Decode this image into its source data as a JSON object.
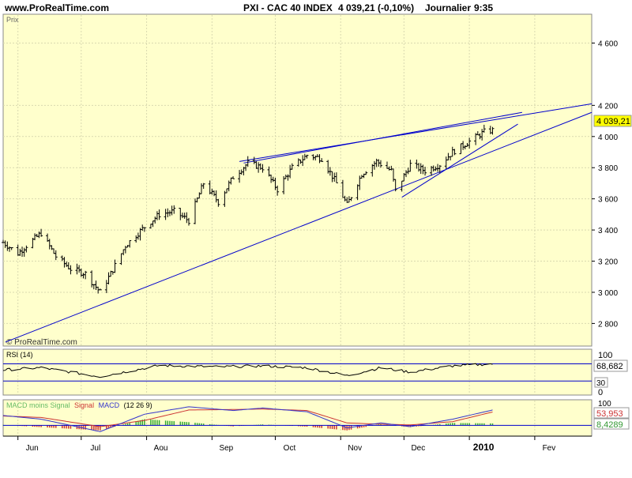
{
  "header": {
    "site": "www.ProRealTime.com",
    "title": "PXI - CAC 40 INDEX",
    "quote": "4 039,21 (-0,10%)",
    "period": "Journalier",
    "time": "9:35"
  },
  "price_panel": {
    "label": "Prix",
    "watermark": "© ProRealTime.com",
    "current_label": "4 039,21",
    "y_ticks": [
      "2 800",
      "3 000",
      "3 200",
      "3 400",
      "3 600",
      "3 800",
      "4 000",
      "4 200",
      "4 600"
    ]
  },
  "rsi_panel": {
    "label": "RSI (14)",
    "ticks": [
      "100",
      "30",
      "0"
    ],
    "current_label": "68,682"
  },
  "macd_panel": {
    "label_diff": "MACD moins Signal",
    "label_signal": "Signal",
    "label_macd": "MACD",
    "label_params": "(12 26 9)",
    "top_tick": "100",
    "value_signal": "53,953",
    "value_diff": "8,4289"
  },
  "x_axis": {
    "labels": [
      "Jun",
      "Jul",
      "Aou",
      "Sep",
      "Oct",
      "Nov",
      "Dec",
      "2010",
      "Fev"
    ]
  },
  "colors": {
    "panel_bg": "#ffffcc",
    "grid": "#d9d9b0",
    "trendline": "#0000cc",
    "candle": "#000000",
    "macd_fill_pos": "#99ee99",
    "macd_fill_neg": "#ee9999",
    "highlight": "#ffff00",
    "signal_line": "#cc3333",
    "macd_line": "#3333cc"
  },
  "chart_data": {
    "type": "ohlc",
    "series_name": "PXI - CAC 40 INDEX",
    "period": "daily",
    "x_range": [
      "2009-05-25",
      "2010-02-28"
    ],
    "ylim": [
      2660,
      4780
    ],
    "last": 4039.21,
    "anchors": [
      {
        "date": "2009-05-25",
        "close": 3320
      },
      {
        "date": "2009-06-01",
        "close": 3250
      },
      {
        "date": "2009-06-05",
        "close": 3300
      },
      {
        "date": "2009-06-12",
        "close": 3380
      },
      {
        "date": "2009-06-19",
        "close": 3230
      },
      {
        "date": "2009-06-26",
        "close": 3150
      },
      {
        "date": "2009-07-03",
        "close": 3120
      },
      {
        "date": "2009-07-10",
        "close": 3000
      },
      {
        "date": "2009-07-15",
        "close": 3120
      },
      {
        "date": "2009-07-22",
        "close": 3300
      },
      {
        "date": "2009-07-31",
        "close": 3420
      },
      {
        "date": "2009-08-07",
        "close": 3500
      },
      {
        "date": "2009-08-14",
        "close": 3520
      },
      {
        "date": "2009-08-21",
        "close": 3460
      },
      {
        "date": "2009-08-28",
        "close": 3700
      },
      {
        "date": "2009-09-04",
        "close": 3580
      },
      {
        "date": "2009-09-11",
        "close": 3740
      },
      {
        "date": "2009-09-18",
        "close": 3830
      },
      {
        "date": "2009-09-25",
        "close": 3800
      },
      {
        "date": "2009-10-02",
        "close": 3660
      },
      {
        "date": "2009-10-09",
        "close": 3800
      },
      {
        "date": "2009-10-16",
        "close": 3880
      },
      {
        "date": "2009-10-23",
        "close": 3860
      },
      {
        "date": "2009-10-30",
        "close": 3700
      },
      {
        "date": "2009-11-04",
        "close": 3560
      },
      {
        "date": "2009-11-11",
        "close": 3760
      },
      {
        "date": "2009-11-18",
        "close": 3840
      },
      {
        "date": "2009-11-25",
        "close": 3780
      },
      {
        "date": "2009-11-27",
        "close": 3650
      },
      {
        "date": "2009-12-04",
        "close": 3820
      },
      {
        "date": "2009-12-11",
        "close": 3780
      },
      {
        "date": "2009-12-18",
        "close": 3820
      },
      {
        "date": "2009-12-24",
        "close": 3900
      },
      {
        "date": "2009-12-31",
        "close": 3960
      },
      {
        "date": "2010-01-08",
        "close": 4030
      },
      {
        "date": "2010-01-12",
        "close": 4039.21
      }
    ],
    "trendlines": [
      {
        "name": "long-term support",
        "from": {
          "date": "2009-05-26",
          "price": 2680
        },
        "to": {
          "date": "2010-02-28",
          "price": 4155
        }
      },
      {
        "name": "resistance",
        "from": {
          "date": "2009-09-14",
          "price": 3840
        },
        "to": {
          "date": "2010-02-28",
          "price": 4210
        }
      },
      {
        "name": "resistance (short)",
        "from": {
          "date": "2009-09-16",
          "price": 3830
        },
        "to": {
          "date": "2010-01-26",
          "price": 4155
        }
      },
      {
        "name": "short-term support",
        "from": {
          "date": "2009-11-30",
          "price": 3610
        },
        "to": {
          "date": "2010-01-24",
          "price": 4080
        }
      }
    ],
    "rsi": {
      "period": 14,
      "ylim": [
        0,
        100
      ],
      "level": 30,
      "last": 68.682,
      "anchors": [
        {
          "date": "2009-05-25",
          "value": 55
        },
        {
          "date": "2009-06-12",
          "value": 60
        },
        {
          "date": "2009-07-10",
          "value": 40
        },
        {
          "date": "2009-08-07",
          "value": 65
        },
        {
          "date": "2009-09-04",
          "value": 62
        },
        {
          "date": "2009-09-25",
          "value": 64
        },
        {
          "date": "2009-10-16",
          "value": 60
        },
        {
          "date": "2009-11-04",
          "value": 42
        },
        {
          "date": "2009-11-20",
          "value": 60
        },
        {
          "date": "2009-12-04",
          "value": 50
        },
        {
          "date": "2009-12-24",
          "value": 64
        },
        {
          "date": "2010-01-12",
          "value": 68.682
        }
      ]
    },
    "macd": {
      "params": [
        12,
        26,
        9
      ],
      "ylim": [
        -40,
        100
      ],
      "signal_last": 53.953,
      "diff_last": 8.4289,
      "macd_anchors": [
        {
          "date": "2009-05-25",
          "value": 40
        },
        {
          "date": "2009-06-12",
          "value": 25
        },
        {
          "date": "2009-07-10",
          "value": -25
        },
        {
          "date": "2009-07-31",
          "value": 45
        },
        {
          "date": "2009-08-21",
          "value": 75
        },
        {
          "date": "2009-09-11",
          "value": 60
        },
        {
          "date": "2009-09-25",
          "value": 70
        },
        {
          "date": "2009-10-16",
          "value": 55
        },
        {
          "date": "2009-11-04",
          "value": -10
        },
        {
          "date": "2009-11-20",
          "value": 10
        },
        {
          "date": "2009-12-04",
          "value": -5
        },
        {
          "date": "2009-12-24",
          "value": 25
        },
        {
          "date": "2010-01-12",
          "value": 62
        }
      ],
      "signal_anchors": [
        {
          "date": "2009-05-25",
          "value": 38
        },
        {
          "date": "2009-06-12",
          "value": 32
        },
        {
          "date": "2009-07-10",
          "value": -5
        },
        {
          "date": "2009-07-31",
          "value": 20
        },
        {
          "date": "2009-08-21",
          "value": 62
        },
        {
          "date": "2009-09-11",
          "value": 64
        },
        {
          "date": "2009-09-25",
          "value": 66
        },
        {
          "date": "2009-10-16",
          "value": 60
        },
        {
          "date": "2009-11-04",
          "value": 10
        },
        {
          "date": "2009-11-20",
          "value": 5
        },
        {
          "date": "2009-12-04",
          "value": 2
        },
        {
          "date": "2009-12-24",
          "value": 15
        },
        {
          "date": "2010-01-12",
          "value": 53.953
        }
      ]
    }
  }
}
